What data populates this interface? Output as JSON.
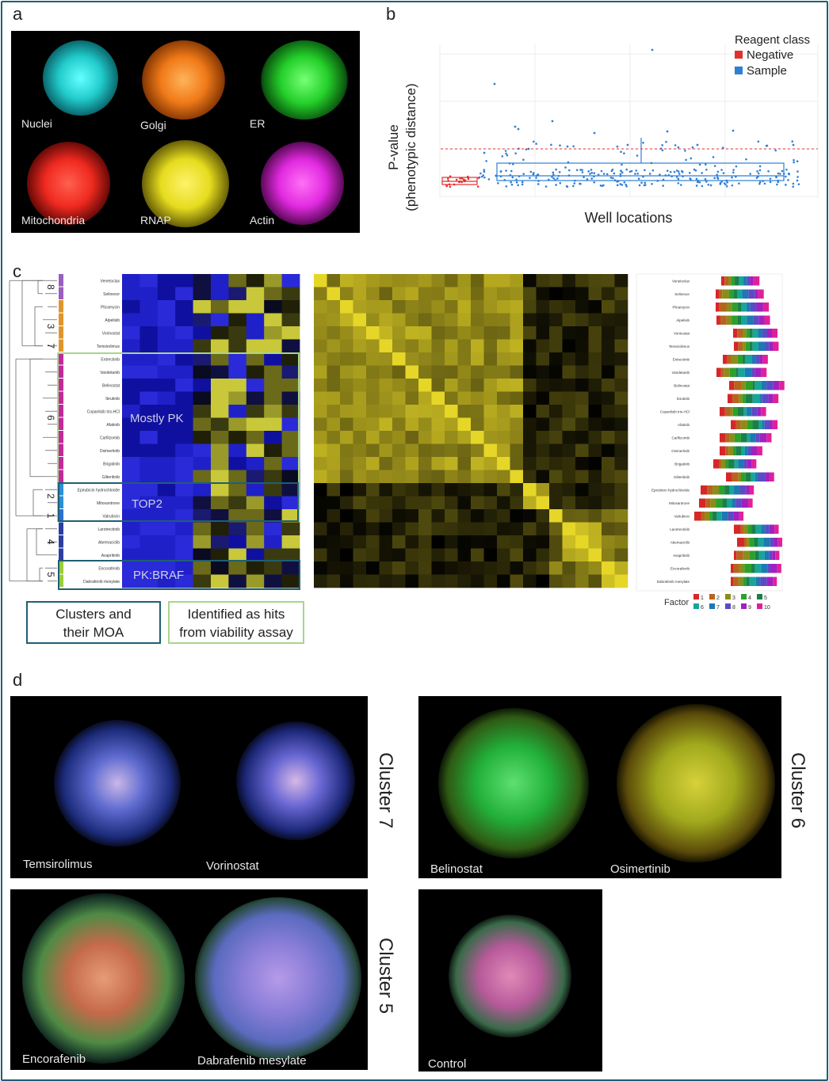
{
  "panels": {
    "a": "a",
    "b": "b",
    "c": "c",
    "d": "d"
  },
  "panel_a": {
    "channels": [
      {
        "label": "Nuclei",
        "color": "#33d6e0"
      },
      {
        "label": "Golgi",
        "color": "#f07a18"
      },
      {
        "label": "ER",
        "color": "#25d02a"
      },
      {
        "label": "Mitochondria",
        "color": "#f02a20"
      },
      {
        "label": "RNAP",
        "color": "#e6dc1e"
      },
      {
        "label": "Actin",
        "color": "#e22ae0"
      }
    ]
  },
  "chart_data": {
    "type": "scatter",
    "title": "",
    "xlabel": "Well locations",
    "ylabel_line1": "P-value",
    "ylabel_line2": "(phenotypic distance)",
    "legend_title": "Reagent class",
    "legend_position": "top-right",
    "series": [
      {
        "name": "Negative",
        "color": "#e0312f"
      },
      {
        "name": "Sample",
        "color": "#2f7fd6"
      }
    ],
    "threshold_line_color": "#e0312f"
  },
  "panel_c": {
    "drugs": [
      "Venetoclax",
      "Selinexor",
      "Plicamycin",
      "Alpelisib",
      "Vorinostat",
      "Temsirolimus",
      "Entrectinib",
      "Vandetanib",
      "Belinostat",
      "Ibrutinib",
      "Copanlisib tris-HCl",
      "Afatinib",
      "Carfilzomib",
      "Osimertinib",
      "Brigatinib",
      "Gilteritinib",
      "Epirubicin hydrochloride",
      "Mitoxantrone",
      "Valrubicin",
      "Larotrectinib",
      "Abemaciclib",
      "Avapritinib",
      "Encorafenib",
      "Dabrafenib mesylate"
    ],
    "cluster_numbers": [
      "8",
      "3",
      "7",
      "6",
      "2",
      "1",
      "4",
      "5"
    ],
    "cluster_labels": {
      "mostly_pk": "Mostly PK",
      "top2": "TOP2",
      "pk_braf": "PK:BRAF"
    },
    "legend_moa": "Clusters and their MOA",
    "legend_hits": "Identified as hits from viability assay",
    "factor_title": "Factor",
    "factors": [
      {
        "label": "1",
        "color": "#d62728"
      },
      {
        "label": "2",
        "color": "#b5651d"
      },
      {
        "label": "3",
        "color": "#8c8c1a"
      },
      {
        "label": "4",
        "color": "#2ca02c"
      },
      {
        "label": "5",
        "color": "#1a7f4b"
      },
      {
        "label": "6",
        "color": "#17a59a"
      },
      {
        "label": "7",
        "color": "#1f77b4"
      },
      {
        "label": "8",
        "color": "#5b4bc4"
      },
      {
        "label": "9",
        "color": "#a020c0"
      },
      {
        "label": "10",
        "color": "#e0209a"
      }
    ]
  },
  "panel_d": {
    "groups": [
      {
        "cluster": "Cluster 7",
        "images": [
          "Temsirolimus",
          "Vorinostat"
        ]
      },
      {
        "cluster": "Cluster 6",
        "images": [
          "Belinostat",
          "Osimertinib"
        ]
      },
      {
        "cluster": "Cluster 5",
        "images": [
          "Encorafenib",
          "Dabrafenib mesylate"
        ]
      }
    ],
    "control": "Control"
  }
}
